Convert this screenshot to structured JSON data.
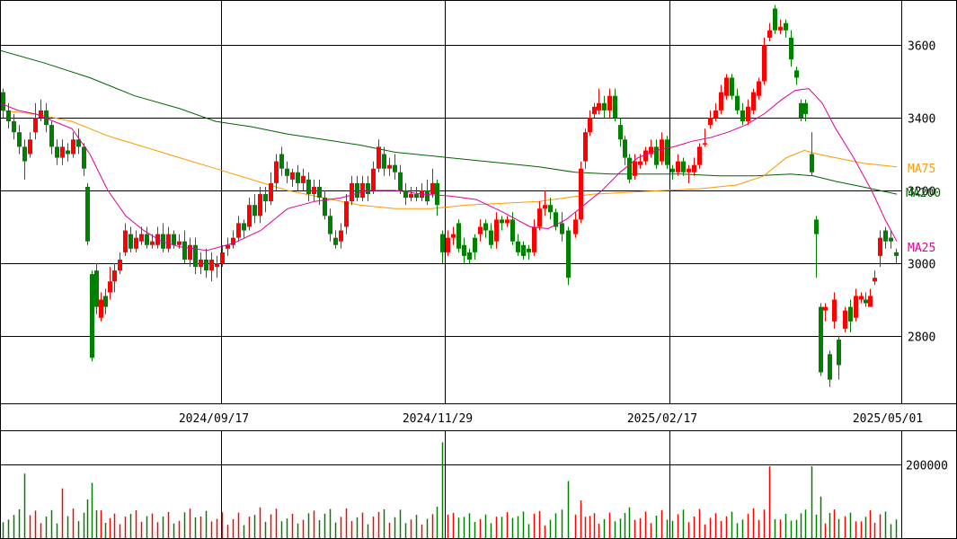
{
  "chart_data": {
    "type": "candlestick",
    "price_axis": {
      "ylim": [
        2650,
        3710
      ],
      "ticks": [
        "3600",
        "3400",
        "3200",
        "3000",
        "2800"
      ]
    },
    "volume_axis": {
      "ylim": [
        0,
        270000
      ],
      "ticks": [
        "200000"
      ]
    },
    "x_ticks": [
      "2024/09/17",
      "2024/11/29",
      "2025/02/17",
      "2025/05/01"
    ],
    "colors": {
      "up": "#ff0000",
      "down": "#008000",
      "ma25": "#e0009a",
      "ma75": "#ff9900",
      "ma200": "#006400",
      "grid": "#000000"
    },
    "ma_labels": {
      "ma25": "MA25",
      "ma75": "MA75",
      "ma200": "MA200"
    },
    "ma25": [
      [
        0,
        3440
      ],
      [
        20,
        3420
      ],
      [
        40,
        3410
      ],
      [
        60,
        3390
      ],
      [
        80,
        3370
      ],
      [
        100,
        3300
      ],
      [
        120,
        3200
      ],
      [
        140,
        3130
      ],
      [
        160,
        3090
      ],
      [
        180,
        3060
      ],
      [
        200,
        3045
      ],
      [
        230,
        3035
      ],
      [
        260,
        3055
      ],
      [
        290,
        3090
      ],
      [
        320,
        3150
      ],
      [
        350,
        3170
      ],
      [
        380,
        3180
      ],
      [
        410,
        3200
      ],
      [
        440,
        3200
      ],
      [
        470,
        3190
      ],
      [
        500,
        3185
      ],
      [
        530,
        3175
      ],
      [
        560,
        3140
      ],
      [
        590,
        3100
      ],
      [
        610,
        3095
      ],
      [
        630,
        3120
      ],
      [
        650,
        3160
      ],
      [
        670,
        3200
      ],
      [
        690,
        3250
      ],
      [
        710,
        3290
      ],
      [
        730,
        3310
      ],
      [
        750,
        3320
      ],
      [
        770,
        3335
      ],
      [
        790,
        3345
      ],
      [
        810,
        3360
      ],
      [
        830,
        3380
      ],
      [
        850,
        3410
      ],
      [
        870,
        3450
      ],
      [
        885,
        3475
      ],
      [
        900,
        3480
      ],
      [
        915,
        3440
      ],
      [
        930,
        3370
      ],
      [
        950,
        3290
      ],
      [
        970,
        3200
      ],
      [
        985,
        3120
      ],
      [
        998,
        3060
      ]
    ],
    "ma75": [
      [
        0,
        3420
      ],
      [
        40,
        3410
      ],
      [
        80,
        3390
      ],
      [
        120,
        3350
      ],
      [
        160,
        3320
      ],
      [
        200,
        3290
      ],
      [
        240,
        3260
      ],
      [
        280,
        3230
      ],
      [
        320,
        3200
      ],
      [
        360,
        3180
      ],
      [
        400,
        3160
      ],
      [
        440,
        3150
      ],
      [
        480,
        3150
      ],
      [
        520,
        3160
      ],
      [
        560,
        3165
      ],
      [
        600,
        3170
      ],
      [
        630,
        3180
      ],
      [
        660,
        3190
      ],
      [
        700,
        3195
      ],
      [
        740,
        3200
      ],
      [
        780,
        3205
      ],
      [
        820,
        3215
      ],
      [
        850,
        3240
      ],
      [
        875,
        3290
      ],
      [
        895,
        3310
      ],
      [
        910,
        3300
      ],
      [
        930,
        3290
      ],
      [
        960,
        3275
      ],
      [
        998,
        3265
      ]
    ],
    "ma200": [
      [
        0,
        3585
      ],
      [
        50,
        3550
      ],
      [
        100,
        3510
      ],
      [
        150,
        3460
      ],
      [
        200,
        3425
      ],
      [
        240,
        3390
      ],
      [
        280,
        3375
      ],
      [
        320,
        3355
      ],
      [
        360,
        3340
      ],
      [
        400,
        3325
      ],
      [
        440,
        3305
      ],
      [
        480,
        3295
      ],
      [
        520,
        3285
      ],
      [
        560,
        3275
      ],
      [
        600,
        3265
      ],
      [
        640,
        3250
      ],
      [
        680,
        3245
      ],
      [
        720,
        3245
      ],
      [
        760,
        3245
      ],
      [
        800,
        3240
      ],
      [
        840,
        3240
      ],
      [
        880,
        3245
      ],
      [
        905,
        3240
      ],
      [
        930,
        3225
      ],
      [
        960,
        3210
      ],
      [
        998,
        3190
      ]
    ],
    "candles": [
      [
        3,
        3470,
        3420,
        3480,
        3400
      ],
      [
        9,
        3420,
        3390,
        3440,
        3370
      ],
      [
        15,
        3390,
        3360,
        3410,
        3340
      ],
      [
        21,
        3360,
        3320,
        3380,
        3300
      ],
      [
        27,
        3320,
        3280,
        3340,
        3230
      ],
      [
        33,
        3300,
        3340,
        3360,
        3290
      ],
      [
        39,
        3360,
        3400,
        3440,
        3340
      ],
      [
        45,
        3400,
        3420,
        3450,
        3390
      ],
      [
        51,
        3420,
        3380,
        3440,
        3360
      ],
      [
        57,
        3380,
        3320,
        3390,
        3300
      ],
      [
        63,
        3320,
        3290,
        3340,
        3270
      ],
      [
        69,
        3290,
        3320,
        3340,
        3270
      ],
      [
        75,
        3310,
        3300,
        3330,
        3280
      ],
      [
        81,
        3300,
        3340,
        3360,
        3290
      ],
      [
        87,
        3340,
        3320,
        3370,
        3300
      ],
      [
        93,
        3320,
        3260,
        3330,
        3240
      ],
      [
        97,
        3210,
        3060,
        3220,
        3050
      ],
      [
        102,
        2970,
        2740,
        2980,
        2730
      ],
      [
        107,
        2980,
        2880,
        3000,
        2860
      ],
      [
        112,
        2850,
        2900,
        2920,
        2840
      ],
      [
        117,
        2910,
        2880,
        2930,
        2860
      ],
      [
        122,
        2920,
        2950,
        2990,
        2900
      ],
      [
        127,
        2950,
        2980,
        3000,
        2920
      ],
      [
        133,
        2980,
        3010,
        3030,
        2970
      ],
      [
        139,
        3030,
        3090,
        3110,
        3020
      ],
      [
        145,
        3080,
        3040,
        3100,
        3030
      ],
      [
        151,
        3040,
        3070,
        3090,
        3030
      ],
      [
        157,
        3060,
        3080,
        3100,
        3050
      ],
      [
        163,
        3080,
        3050,
        3100,
        3040
      ],
      [
        169,
        3050,
        3060,
        3080,
        3040
      ],
      [
        175,
        3050,
        3080,
        3100,
        3040
      ],
      [
        181,
        3080,
        3040,
        3110,
        3030
      ],
      [
        187,
        3040,
        3080,
        3100,
        3030
      ],
      [
        193,
        3080,
        3050,
        3090,
        3040
      ],
      [
        199,
        3050,
        3060,
        3080,
        3040
      ],
      [
        205,
        3060,
        3010,
        3090,
        3000
      ],
      [
        211,
        3010,
        3050,
        3070,
        2990
      ],
      [
        217,
        3050,
        2990,
        3070,
        2970
      ],
      [
        223,
        2990,
        3010,
        3030,
        2970
      ],
      [
        229,
        3010,
        2980,
        3040,
        2960
      ],
      [
        235,
        2980,
        3010,
        3030,
        2950
      ],
      [
        241,
        2990,
        3000,
        3020,
        2960
      ],
      [
        247,
        3000,
        3030,
        3050,
        2990
      ],
      [
        253,
        3040,
        3050,
        3070,
        3020
      ],
      [
        259,
        3050,
        3070,
        3090,
        3040
      ],
      [
        265,
        3070,
        3110,
        3130,
        3060
      ],
      [
        271,
        3110,
        3090,
        3120,
        3070
      ],
      [
        277,
        3100,
        3160,
        3180,
        3090
      ],
      [
        283,
        3160,
        3130,
        3190,
        3110
      ],
      [
        289,
        3130,
        3190,
        3210,
        3110
      ],
      [
        295,
        3190,
        3170,
        3210,
        3140
      ],
      [
        301,
        3170,
        3220,
        3250,
        3160
      ],
      [
        307,
        3220,
        3280,
        3300,
        3200
      ],
      [
        313,
        3300,
        3260,
        3320,
        3240
      ],
      [
        319,
        3260,
        3240,
        3280,
        3220
      ],
      [
        325,
        3230,
        3250,
        3260,
        3210
      ],
      [
        331,
        3250,
        3220,
        3270,
        3200
      ],
      [
        337,
        3220,
        3240,
        3260,
        3200
      ],
      [
        343,
        3230,
        3190,
        3250,
        3170
      ],
      [
        349,
        3190,
        3210,
        3230,
        3170
      ],
      [
        355,
        3210,
        3180,
        3230,
        3160
      ],
      [
        361,
        3180,
        3130,
        3200,
        3120
      ],
      [
        367,
        3130,
        3080,
        3150,
        3060
      ],
      [
        373,
        3070,
        3050,
        3090,
        3040
      ],
      [
        379,
        3060,
        3090,
        3110,
        3040
      ],
      [
        385,
        3100,
        3170,
        3190,
        3080
      ],
      [
        391,
        3170,
        3220,
        3240,
        3160
      ],
      [
        397,
        3220,
        3180,
        3240,
        3170
      ],
      [
        403,
        3180,
        3220,
        3240,
        3170
      ],
      [
        409,
        3220,
        3190,
        3240,
        3170
      ],
      [
        415,
        3200,
        3260,
        3280,
        3190
      ],
      [
        421,
        3260,
        3320,
        3340,
        3250
      ],
      [
        427,
        3300,
        3260,
        3320,
        3240
      ],
      [
        433,
        3260,
        3270,
        3290,
        3240
      ],
      [
        439,
        3270,
        3250,
        3300,
        3230
      ],
      [
        445,
        3250,
        3200,
        3270,
        3190
      ],
      [
        451,
        3200,
        3180,
        3220,
        3160
      ],
      [
        457,
        3180,
        3190,
        3210,
        3170
      ],
      [
        463,
        3190,
        3180,
        3210,
        3170
      ],
      [
        469,
        3180,
        3200,
        3220,
        3170
      ],
      [
        475,
        3200,
        3170,
        3230,
        3160
      ],
      [
        481,
        3190,
        3220,
        3260,
        3180
      ],
      [
        486,
        3220,
        3160,
        3230,
        3130
      ],
      [
        492,
        3080,
        3030,
        3090,
        3000
      ],
      [
        498,
        3030,
        3070,
        3090,
        3020
      ],
      [
        504,
        3070,
        3080,
        3100,
        3050
      ],
      [
        510,
        3110,
        3040,
        3120,
        3030
      ],
      [
        516,
        3050,
        3020,
        3070,
        3000
      ],
      [
        522,
        3030,
        3010,
        3040,
        3000
      ],
      [
        528,
        3070,
        3030,
        3080,
        3010
      ],
      [
        534,
        3080,
        3100,
        3120,
        3060
      ],
      [
        540,
        3110,
        3090,
        3120,
        3070
      ],
      [
        546,
        3090,
        3050,
        3110,
        3040
      ],
      [
        552,
        3060,
        3120,
        3140,
        3040
      ],
      [
        558,
        3120,
        3110,
        3130,
        3090
      ],
      [
        564,
        3110,
        3120,
        3130,
        3100
      ],
      [
        570,
        3120,
        3060,
        3140,
        3050
      ],
      [
        576,
        3060,
        3030,
        3080,
        3020
      ],
      [
        582,
        3050,
        3020,
        3060,
        3010
      ],
      [
        588,
        3040,
        3030,
        3050,
        3010
      ],
      [
        594,
        3030,
        3100,
        3120,
        3020
      ],
      [
        600,
        3100,
        3150,
        3170,
        3090
      ],
      [
        606,
        3150,
        3160,
        3200,
        3130
      ],
      [
        612,
        3160,
        3140,
        3180,
        3120
      ],
      [
        618,
        3140,
        3100,
        3150,
        3090
      ],
      [
        625,
        3110,
        3080,
        3140,
        3060
      ],
      [
        632,
        3090,
        2960,
        3100,
        2940
      ],
      [
        640,
        3080,
        3120,
        3140,
        3070
      ],
      [
        646,
        3120,
        3260,
        3280,
        3110
      ],
      [
        651,
        3280,
        3360,
        3370,
        3260
      ],
      [
        656,
        3360,
        3400,
        3420,
        3350
      ],
      [
        661,
        3410,
        3430,
        3440,
        3400
      ],
      [
        666,
        3420,
        3440,
        3480,
        3410
      ],
      [
        672,
        3440,
        3420,
        3460,
        3400
      ],
      [
        678,
        3420,
        3460,
        3480,
        3400
      ],
      [
        684,
        3460,
        3400,
        3480,
        3390
      ],
      [
        690,
        3380,
        3340,
        3400,
        3320
      ],
      [
        695,
        3340,
        3290,
        3350,
        3270
      ],
      [
        700,
        3290,
        3230,
        3300,
        3220
      ],
      [
        706,
        3240,
        3280,
        3300,
        3230
      ],
      [
        712,
        3270,
        3280,
        3300,
        3260
      ],
      [
        718,
        3280,
        3310,
        3320,
        3270
      ],
      [
        724,
        3300,
        3320,
        3340,
        3290
      ],
      [
        730,
        3320,
        3270,
        3340,
        3260
      ],
      [
        736,
        3280,
        3340,
        3360,
        3270
      ],
      [
        742,
        3340,
        3270,
        3350,
        3260
      ],
      [
        748,
        3260,
        3250,
        3270,
        3230
      ],
      [
        754,
        3250,
        3280,
        3300,
        3240
      ],
      [
        760,
        3280,
        3250,
        3290,
        3240
      ],
      [
        766,
        3250,
        3260,
        3270,
        3220
      ],
      [
        772,
        3250,
        3270,
        3290,
        3240
      ],
      [
        778,
        3270,
        3320,
        3330,
        3260
      ],
      [
        784,
        3330,
        3330,
        3370,
        3320
      ],
      [
        790,
        3380,
        3400,
        3420,
        3370
      ],
      [
        796,
        3400,
        3420,
        3440,
        3390
      ],
      [
        802,
        3420,
        3470,
        3490,
        3410
      ],
      [
        808,
        3460,
        3510,
        3520,
        3450
      ],
      [
        814,
        3510,
        3460,
        3520,
        3450
      ],
      [
        820,
        3460,
        3420,
        3480,
        3410
      ],
      [
        826,
        3420,
        3390,
        3440,
        3380
      ],
      [
        832,
        3390,
        3430,
        3450,
        3380
      ],
      [
        838,
        3420,
        3470,
        3480,
        3410
      ],
      [
        844,
        3460,
        3500,
        3510,
        3450
      ],
      [
        850,
        3500,
        3600,
        3620,
        3490
      ],
      [
        856,
        3620,
        3640,
        3660,
        3610
      ],
      [
        862,
        3700,
        3640,
        3710,
        3630
      ],
      [
        868,
        3640,
        3650,
        3670,
        3630
      ],
      [
        874,
        3660,
        3640,
        3670,
        3620
      ],
      [
        880,
        3620,
        3560,
        3640,
        3540
      ],
      [
        886,
        3530,
        3510,
        3540,
        3490
      ],
      [
        891,
        3440,
        3400,
        3450,
        3390
      ],
      [
        896,
        3440,
        3410,
        3450,
        3390
      ],
      [
        903,
        3300,
        3250,
        3360,
        3240
      ],
      [
        908,
        3120,
        3080,
        3130,
        2960
      ],
      [
        913,
        2880,
        2700,
        2890,
        2690
      ],
      [
        918,
        2870,
        2880,
        2890,
        2840
      ],
      [
        923,
        2750,
        2680,
        2760,
        2660
      ],
      [
        928,
        2840,
        2900,
        2920,
        2820
      ],
      [
        933,
        2790,
        2720,
        2800,
        2680
      ],
      [
        940,
        2820,
        2870,
        2880,
        2810
      ],
      [
        946,
        2880,
        2840,
        2900,
        2810
      ],
      [
        952,
        2850,
        2910,
        2930,
        2840
      ],
      [
        958,
        2900,
        2910,
        2920,
        2890
      ],
      [
        963,
        2900,
        2890,
        2920,
        2880
      ],
      [
        968,
        2880,
        2910,
        2930,
        2880
      ],
      [
        973,
        2950,
        2960,
        2980,
        2940
      ],
      [
        979,
        3020,
        3070,
        3090,
        2990
      ],
      [
        985,
        3090,
        3060,
        3100,
        3040
      ],
      [
        991,
        3070,
        3060,
        3090,
        3040
      ],
      [
        997,
        3030,
        3020,
        3040,
        3000
      ]
    ],
    "volume_spikes": [
      [
        27,
        175000
      ],
      [
        67,
        135000
      ],
      [
        102,
        150000
      ],
      [
        489,
        265000
      ],
      [
        492,
        260000
      ],
      [
        632,
        155000
      ],
      [
        858,
        195000
      ],
      [
        903,
        195000
      ]
    ]
  }
}
